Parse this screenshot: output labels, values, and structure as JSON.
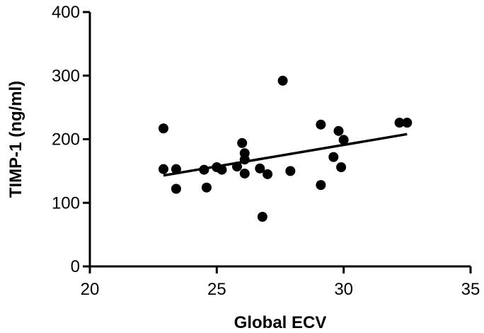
{
  "chart_data": {
    "type": "scatter",
    "title": "",
    "xlabel": "Global ECV",
    "ylabel": "TIMP-1 (ng/ml)",
    "xlim": [
      20,
      35
    ],
    "ylim": [
      0,
      400
    ],
    "xticks": [
      20,
      25,
      30,
      35
    ],
    "yticks": [
      0,
      100,
      200,
      300,
      400
    ],
    "grid": false,
    "legend": "none",
    "marker_color": "#000000",
    "points": [
      {
        "x": 22.9,
        "y": 217
      },
      {
        "x": 22.9,
        "y": 153
      },
      {
        "x": 23.4,
        "y": 153
      },
      {
        "x": 23.4,
        "y": 122
      },
      {
        "x": 24.5,
        "y": 152
      },
      {
        "x": 24.6,
        "y": 124
      },
      {
        "x": 25.0,
        "y": 156
      },
      {
        "x": 25.2,
        "y": 152
      },
      {
        "x": 25.8,
        "y": 157
      },
      {
        "x": 26.0,
        "y": 194
      },
      {
        "x": 26.1,
        "y": 178
      },
      {
        "x": 26.1,
        "y": 168
      },
      {
        "x": 26.1,
        "y": 146
      },
      {
        "x": 26.7,
        "y": 154
      },
      {
        "x": 26.8,
        "y": 78
      },
      {
        "x": 27.0,
        "y": 145
      },
      {
        "x": 27.6,
        "y": 292
      },
      {
        "x": 27.9,
        "y": 150
      },
      {
        "x": 29.1,
        "y": 223
      },
      {
        "x": 29.1,
        "y": 128
      },
      {
        "x": 29.6,
        "y": 172
      },
      {
        "x": 29.8,
        "y": 213
      },
      {
        "x": 29.9,
        "y": 156
      },
      {
        "x": 30.0,
        "y": 199
      },
      {
        "x": 32.2,
        "y": 226
      },
      {
        "x": 32.5,
        "y": 226
      }
    ],
    "trendline": {
      "x": [
        22.9,
        32.5
      ],
      "y": [
        143,
        208
      ]
    }
  }
}
